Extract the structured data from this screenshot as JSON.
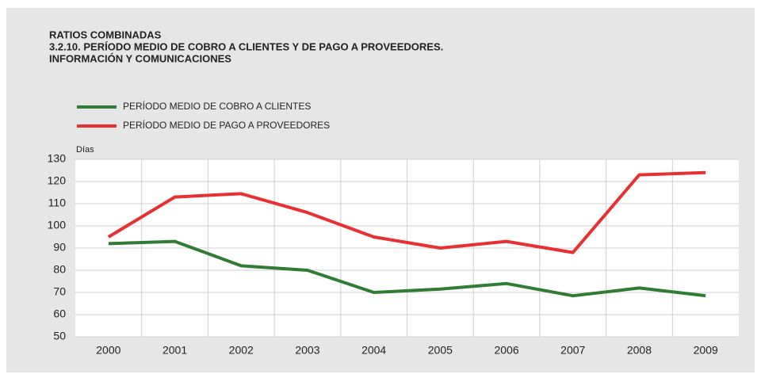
{
  "chart_data": {
    "type": "line",
    "title": [
      "RATIOS COMBINADAS",
      "3.2.10. PERÍODO MEDIO DE COBRO A CLIENTES Y DE PAGO A PROVEEDORES.",
      "INFORMACIÓN Y COMUNICACIONES"
    ],
    "y_axis_label": "Días",
    "categories": [
      "2000",
      "2001",
      "2002",
      "2003",
      "2004",
      "2005",
      "2006",
      "2007",
      "2008",
      "2009"
    ],
    "series": [
      {
        "name": "PERÍODO MEDIO DE COBRO A CLIENTES",
        "color": "#2e7d32",
        "values": [
          92,
          93,
          82,
          80,
          70,
          71.5,
          74,
          68.5,
          72,
          68.5
        ]
      },
      {
        "name": "PERÍODO MEDIO DE PAGO A PROVEEDORES",
        "color": "#e83030",
        "values": [
          95,
          113,
          114.5,
          106,
          95,
          90,
          93,
          88,
          123,
          124
        ]
      }
    ],
    "ylim": [
      50,
      130
    ],
    "yticks": [
      50,
      60,
      70,
      80,
      90,
      100,
      110,
      120,
      130
    ],
    "grid": true
  }
}
